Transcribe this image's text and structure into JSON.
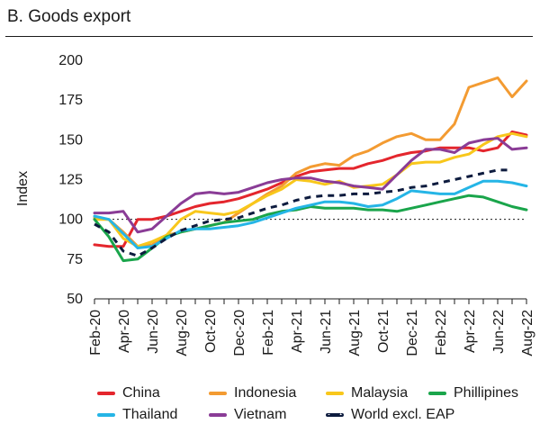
{
  "page_title": "B. Goods export",
  "chart_data": {
    "type": "line",
    "title": "B. Goods export",
    "xlabel": "",
    "ylabel": "Index",
    "ylim": [
      50,
      200
    ],
    "yticks": [
      50,
      75,
      100,
      125,
      150,
      175,
      200
    ],
    "x_tick_labels": [
      "Feb-20",
      "Apr-20",
      "Jun-20",
      "Aug-20",
      "Oct-20",
      "Dec-20",
      "Feb-21",
      "Apr-21",
      "Jun-21",
      "Aug-21",
      "Oct-21",
      "Dec-21",
      "Feb-22",
      "Apr-22",
      "Jun-22",
      "Aug-22"
    ],
    "x_count": 31,
    "reference_line": 100,
    "series": [
      {
        "name": "China",
        "color": "#e4262d",
        "dashed": false,
        "values": [
          84,
          83,
          83,
          100,
          100,
          102,
          105,
          108,
          110,
          111,
          113,
          116,
          119,
          123,
          127,
          130,
          131,
          132,
          132,
          135,
          137,
          140,
          142,
          143,
          145,
          145,
          145,
          143,
          145,
          155,
          153
        ]
      },
      {
        "name": "Indonesia",
        "color": "#f39b32",
        "dashed": false,
        "values": [
          101,
          100,
          92,
          83,
          84,
          90,
          92,
          94,
          96,
          98,
          104,
          110,
          116,
          121,
          129,
          133,
          135,
          134,
          140,
          143,
          148,
          152,
          154,
          150,
          150,
          160,
          183,
          186,
          189,
          177,
          187
        ]
      },
      {
        "name": "Malaysia",
        "color": "#f8c71b",
        "dashed": false,
        "values": [
          100,
          100,
          88,
          83,
          86,
          90,
          100,
          105,
          104,
          103,
          105,
          110,
          115,
          119,
          125,
          124,
          122,
          124,
          120,
          121,
          122,
          128,
          135,
          136,
          136,
          139,
          141,
          147,
          152,
          154,
          152
        ]
      },
      {
        "name": "Phillipines",
        "color": "#1aa54b",
        "dashed": false,
        "values": [
          100,
          89,
          74,
          75,
          82,
          89,
          92,
          94,
          96,
          98,
          99,
          100,
          103,
          105,
          106,
          108,
          107,
          107,
          107,
          106,
          106,
          105,
          107,
          109,
          111,
          113,
          115,
          114,
          111,
          108,
          106
        ]
      },
      {
        "name": "Thailand",
        "color": "#25b5e6",
        "dashed": false,
        "values": [
          102,
          100,
          91,
          82,
          83,
          88,
          93,
          94,
          94,
          95,
          96,
          98,
          101,
          104,
          107,
          109,
          111,
          111,
          110,
          108,
          109,
          113,
          118,
          117,
          116,
          116,
          120,
          124,
          124,
          123,
          121
        ]
      },
      {
        "name": "Vietnam",
        "color": "#8a3c96",
        "dashed": false,
        "values": [
          104,
          104,
          105,
          92,
          94,
          102,
          110,
          116,
          117,
          116,
          117,
          120,
          123,
          125,
          126,
          126,
          124,
          123,
          121,
          120,
          119,
          128,
          137,
          144,
          144,
          142,
          148,
          150,
          151,
          144,
          145
        ]
      },
      {
        "name": "World excl. EAP",
        "color": "#0d1b3e",
        "dashed": true,
        "values": [
          97,
          92,
          80,
          77,
          82,
          88,
          93,
          96,
          99,
          100,
          101,
          104,
          107,
          109,
          112,
          114,
          115,
          115,
          116,
          116,
          117,
          118,
          120,
          121,
          123,
          125,
          127,
          129,
          131,
          131,
          null
        ]
      }
    ]
  }
}
